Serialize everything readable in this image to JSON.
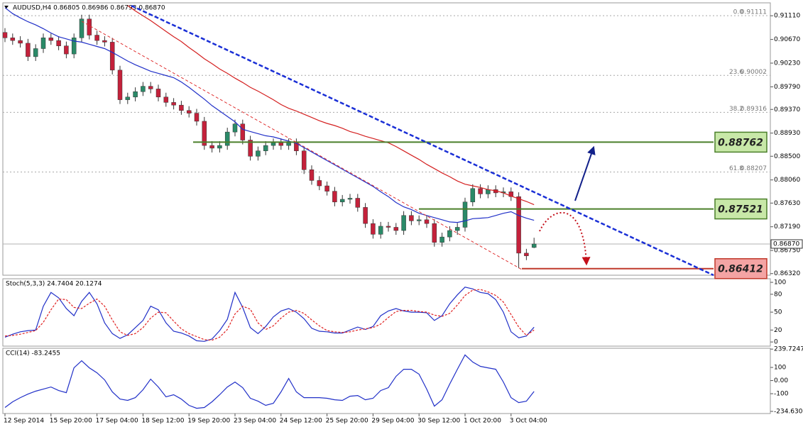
{
  "chart_data": [
    {
      "type": "candlestick",
      "title": "AUDUSD,H4  0.86805 0.86986 0.86793 0.86870",
      "categories": [
        "12 Sep 2014",
        null,
        null,
        null,
        null,
        null,
        "15 Sep 20:00",
        null,
        null,
        null,
        null,
        null,
        "17 Sep 04:00",
        null,
        null,
        null,
        null,
        null,
        "18 Sep 12:00",
        null,
        null,
        null,
        null,
        null,
        "19 Sep 20:00",
        null,
        null,
        null,
        null,
        null,
        "23 Sep 04:00",
        null,
        null,
        null,
        null,
        null,
        "24 Sep 12:00",
        null,
        null,
        null,
        null,
        null,
        "25 Sep 20:00",
        null,
        null,
        null,
        null,
        null,
        "29 Sep 04:00",
        null,
        null,
        null,
        null,
        null,
        "30 Sep 12:00",
        null,
        null,
        null,
        null,
        null,
        "1 Oct 20:00",
        null,
        null,
        null,
        null,
        null,
        "3 Oct 04:00",
        null,
        null,
        null
      ],
      "open": [
        0.908,
        0.907,
        0.9065,
        0.906,
        0.9035,
        0.905,
        0.907,
        0.9065,
        0.9055,
        0.904,
        0.907,
        0.9105,
        0.9075,
        0.9065,
        0.9062,
        0.901,
        0.8955,
        0.896,
        0.897,
        0.898,
        0.8975,
        0.896,
        0.895,
        0.8945,
        0.8935,
        0.893,
        0.8915,
        0.887,
        0.8865,
        0.887,
        0.8895,
        0.891,
        0.888,
        0.885,
        0.886,
        0.887,
        0.8875,
        0.887,
        0.8875,
        0.886,
        0.8825,
        0.8805,
        0.8795,
        0.8785,
        0.8765,
        0.877,
        0.8772,
        0.8755,
        0.8725,
        0.8705,
        0.872,
        0.8718,
        0.8712,
        0.874,
        0.873,
        0.8732,
        0.8725,
        0.869,
        0.87,
        0.8712,
        0.8718,
        0.8765,
        0.879,
        0.878,
        0.8788,
        0.8782,
        0.8784,
        0.8775,
        0.867,
        0.86805
      ],
      "high": [
        0.9088,
        0.9078,
        0.9073,
        0.9068,
        0.9058,
        0.9078,
        0.9078,
        0.9073,
        0.9063,
        0.9078,
        0.9113,
        0.9113,
        0.9083,
        0.9073,
        0.907,
        0.9018,
        0.8968,
        0.8978,
        0.8988,
        0.8988,
        0.8983,
        0.8968,
        0.8958,
        0.8953,
        0.8943,
        0.8938,
        0.8923,
        0.8878,
        0.8878,
        0.8903,
        0.8918,
        0.8918,
        0.8888,
        0.8868,
        0.8878,
        0.8883,
        0.8883,
        0.8883,
        0.8883,
        0.8868,
        0.8833,
        0.8813,
        0.8803,
        0.8793,
        0.8778,
        0.878,
        0.878,
        0.8763,
        0.8733,
        0.8728,
        0.8728,
        0.8726,
        0.8748,
        0.8748,
        0.874,
        0.874,
        0.8733,
        0.8708,
        0.872,
        0.8726,
        0.8773,
        0.8798,
        0.8798,
        0.8796,
        0.8796,
        0.8792,
        0.8792,
        0.8783,
        0.8678,
        0.86986
      ],
      "low": [
        0.9062,
        0.9057,
        0.9052,
        0.9027,
        0.9027,
        0.9042,
        0.9057,
        0.9047,
        0.9032,
        0.9032,
        0.9062,
        0.9067,
        0.9057,
        0.9054,
        0.9002,
        0.8947,
        0.8947,
        0.8952,
        0.8962,
        0.8967,
        0.8952,
        0.8942,
        0.8937,
        0.8927,
        0.8922,
        0.8907,
        0.8862,
        0.8857,
        0.8857,
        0.8862,
        0.8887,
        0.8872,
        0.8842,
        0.8842,
        0.8852,
        0.8862,
        0.8862,
        0.8862,
        0.8852,
        0.8817,
        0.8797,
        0.8787,
        0.8777,
        0.8757,
        0.8757,
        0.8762,
        0.8747,
        0.8717,
        0.8697,
        0.8697,
        0.871,
        0.8704,
        0.8704,
        0.8722,
        0.8722,
        0.8717,
        0.8682,
        0.8682,
        0.8692,
        0.8704,
        0.871,
        0.8757,
        0.8772,
        0.8772,
        0.8774,
        0.8774,
        0.8767,
        0.8642,
        0.8657,
        0.86793
      ],
      "close": [
        0.907,
        0.9065,
        0.906,
        0.9035,
        0.905,
        0.907,
        0.9065,
        0.9055,
        0.904,
        0.907,
        0.9105,
        0.9075,
        0.9065,
        0.9062,
        0.901,
        0.8955,
        0.896,
        0.897,
        0.898,
        0.8975,
        0.896,
        0.895,
        0.8945,
        0.8935,
        0.893,
        0.8915,
        0.887,
        0.8865,
        0.887,
        0.8895,
        0.891,
        0.888,
        0.885,
        0.886,
        0.887,
        0.8875,
        0.887,
        0.8875,
        0.886,
        0.8825,
        0.8805,
        0.8795,
        0.8785,
        0.8765,
        0.877,
        0.8772,
        0.8755,
        0.8725,
        0.8705,
        0.872,
        0.8718,
        0.8712,
        0.874,
        0.873,
        0.8732,
        0.8725,
        0.869,
        0.87,
        0.8712,
        0.8718,
        0.8765,
        0.879,
        0.878,
        0.8788,
        0.8782,
        0.8784,
        0.8775,
        0.867,
        0.8665,
        0.8687
      ],
      "up_color": "#2a8a68",
      "down_color": "#c4213b",
      "series": [
        {
          "color": "#2130c8",
          "values": [
            0.9126,
            0.9115,
            0.9107,
            0.91,
            0.9094,
            0.9087,
            0.9079,
            0.9072,
            0.9068,
            0.9064,
            0.9062,
            0.9058,
            0.9054,
            0.905,
            0.9043,
            0.9035,
            0.9027,
            0.902,
            0.9014,
            0.9008,
            0.9004,
            0.9,
            0.8996,
            0.8988,
            0.8978,
            0.8967,
            0.8956,
            0.8944,
            0.8934,
            0.8924,
            0.8914,
            0.89,
            0.8896,
            0.8892,
            0.8888,
            0.8886,
            0.8882,
            0.8878,
            0.8874,
            0.8866,
            0.8858,
            0.885,
            0.8842,
            0.8834,
            0.8826,
            0.8818,
            0.881,
            0.8802,
            0.8794,
            0.8784,
            0.8775,
            0.8764,
            0.8756,
            0.8751,
            0.8744,
            0.874,
            0.8736,
            0.8732,
            0.8728,
            0.8727,
            0.873,
            0.8734,
            0.8735,
            0.8736,
            0.874,
            0.8744,
            0.8747,
            0.874,
            0.8735,
            0.8731
          ]
        },
        {
          "color": "#d42020",
          "values": [
            null,
            null,
            null,
            null,
            null,
            null,
            null,
            null,
            null,
            null,
            null,
            null,
            null,
            null,
            null,
            null,
            0.913,
            0.912,
            0.9111,
            0.9102,
            0.9092,
            0.9082,
            0.9072,
            0.9063,
            0.9052,
            0.9042,
            0.9031,
            0.9022,
            0.9012,
            0.9004,
            0.8995,
            0.8987,
            0.8978,
            0.8971,
            0.8963,
            0.8955,
            0.8946,
            0.8939,
            0.8934,
            0.8928,
            0.8922,
            0.8916,
            0.8911,
            0.8907,
            0.8902,
            0.8896,
            0.8892,
            0.8887,
            0.8883,
            0.8879,
            0.8875,
            0.8868,
            0.886,
            0.8852,
            0.8844,
            0.8835,
            0.8827,
            0.8819,
            0.8812,
            0.8804,
            0.8798,
            0.8795,
            0.8792,
            0.8788,
            0.8786,
            0.8782,
            0.8776,
            0.8771,
            0.8766,
            0.876
          ]
        }
      ],
      "ylim": [
        0.8629,
        0.9135
      ],
      "yticks": [
        {
          "value": 0.9111,
          "label": "0.91110"
        },
        {
          "value": 0.9067,
          "label": "0.90670"
        },
        {
          "value": 0.9023,
          "label": "0.90230"
        },
        {
          "value": 0.8979,
          "label": "0.89790"
        },
        {
          "value": 0.8937,
          "label": "0.89370"
        },
        {
          "value": 0.8893,
          "label": "0.88930"
        },
        {
          "value": 0.885,
          "label": "0.88500"
        },
        {
          "value": 0.8806,
          "label": "0.88060"
        },
        {
          "value": 0.8763,
          "label": "0.87630"
        },
        {
          "value": 0.8719,
          "label": "0.87190"
        },
        {
          "value": 0.8675,
          "label": "0.86750"
        },
        {
          "value": 0.8632,
          "label": "0.86320"
        }
      ],
      "current_price": {
        "value": 0.8687,
        "label": "0.86870"
      },
      "fibo": [
        {
          "level": "0.0",
          "value": 0.91111
        },
        {
          "level": "23.6",
          "value": 0.90002
        },
        {
          "level": "38.2",
          "value": 0.89316
        },
        {
          "level": "61.8",
          "value": 0.88207
        }
      ],
      "levels": [
        {
          "value": 0.88762,
          "color": "#4a7f2a",
          "fill": "#c8e8a8"
        },
        {
          "value": 0.87521,
          "color": "#4a7f2a",
          "fill": "#c8e8a8"
        },
        {
          "value": 0.86412,
          "color": "#c0392b",
          "fill": "#f4a4a4"
        }
      ]
    },
    {
      "type": "line",
      "title": "Stoch(5,3,3) 24.7404 20.1274",
      "series": [
        {
          "color": "#2130c8",
          "values": [
            8,
            13,
            17,
            19,
            20,
            60,
            83,
            74,
            56,
            44,
            68,
            83,
            64,
            32,
            14,
            6,
            12,
            24,
            36,
            60,
            54,
            32,
            18,
            15,
            10,
            2,
            1,
            5,
            19,
            38,
            83,
            58,
            24,
            14,
            26,
            42,
            52,
            56,
            50,
            39,
            23,
            18,
            17,
            15,
            15,
            20,
            25,
            21,
            26,
            44,
            52,
            56,
            52,
            50,
            50,
            49,
            36,
            44,
            64,
            79,
            92,
            89,
            83,
            81,
            71,
            50,
            17,
            7,
            10,
            24.7404
          ]
        },
        {
          "color": "#e02020",
          "dashed": true,
          "values": [
            10,
            11,
            13,
            16,
            19,
            33,
            54,
            72,
            71,
            58,
            56,
            65,
            72,
            60,
            37,
            17,
            11,
            14,
            24,
            40,
            50,
            49,
            35,
            22,
            14,
            9,
            4,
            3,
            8,
            21,
            47,
            60,
            55,
            32,
            21,
            27,
            40,
            50,
            53,
            48,
            37,
            27,
            19,
            17,
            16,
            17,
            20,
            22,
            24,
            30,
            41,
            51,
            53,
            53,
            51,
            50,
            45,
            43,
            48,
            62,
            78,
            87,
            88,
            84,
            78,
            67,
            46,
            25,
            11,
            20.1274
          ]
        }
      ],
      "ylim": [
        -7,
        106
      ],
      "yticks": [
        100,
        80,
        50,
        20,
        0
      ]
    },
    {
      "type": "line",
      "title": "CCI(14) -83.2455",
      "series": [
        {
          "color": "#2130c8",
          "values": [
            -205,
            -162,
            -130,
            -103,
            -81,
            -65,
            -49,
            -76,
            -92,
            97,
            151,
            97,
            59,
            5,
            -86,
            -141,
            -151,
            -130,
            -70,
            11,
            -49,
            -124,
            -108,
            -141,
            -189,
            -211,
            -205,
            -162,
            -108,
            -49,
            -11,
            -54,
            -135,
            -157,
            -189,
            -173,
            -86,
            16,
            -86,
            -130,
            -130,
            -130,
            -135,
            -146,
            -151,
            -119,
            -114,
            -146,
            -135,
            -76,
            -54,
            32,
            86,
            86,
            49,
            -65,
            -195,
            -146,
            -27,
            86,
            195,
            141,
            108,
            97,
            86,
            -11,
            -130,
            -168,
            -157,
            -83.2455
          ]
        }
      ],
      "ylim": [
        -251,
        246
      ],
      "yticks": [
        239.7247,
        100,
        {
          "value": 0,
          "label": "0.00"
        },
        -100,
        -234.6305
      ]
    }
  ]
}
